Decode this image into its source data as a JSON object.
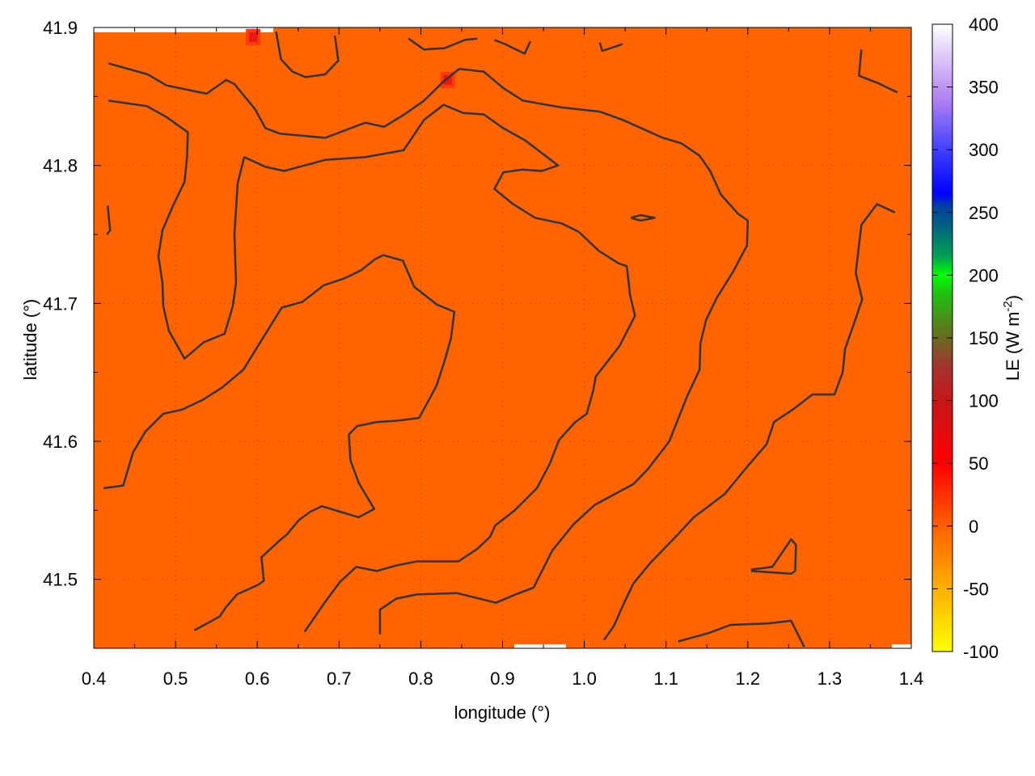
{
  "chart_data": {
    "type": "heatmap",
    "xlabel": "longitude (°)",
    "ylabel": "latitude (°)",
    "colorbar_label": "LE (W m",
    "colorbar_label_sup": "-2",
    "colorbar_label_close": ")",
    "xlim": [
      0.4,
      1.4
    ],
    "ylim": [
      41.45,
      41.9
    ],
    "clim": [
      -100,
      400
    ],
    "x_ticks": [
      "0.4",
      "0.5",
      "0.6",
      "0.7",
      "0.8",
      "0.9",
      "1.0",
      "1.1",
      "1.2",
      "1.3",
      "1.4"
    ],
    "x_tick_values": [
      0.4,
      0.5,
      0.6,
      0.7,
      0.8,
      0.9,
      1.0,
      1.1,
      1.2,
      1.3,
      1.4
    ],
    "y_ticks": [
      "41.5",
      "41.6",
      "41.7",
      "41.8",
      "41.9"
    ],
    "y_tick_values": [
      41.5,
      41.6,
      41.7,
      41.8,
      41.9
    ],
    "colorbar_ticks": [
      "-100",
      "-50",
      "0",
      "50",
      "100",
      "150",
      "200",
      "250",
      "300",
      "350",
      "400"
    ],
    "colorbar_tick_values": [
      -100,
      -50,
      0,
      50,
      100,
      150,
      200,
      250,
      300,
      350,
      400
    ],
    "grid": true,
    "field_base_value": 10,
    "field_color": "#ff6400",
    "hotspots": [
      {
        "lon": 0.595,
        "lat": 41.893,
        "value": 50
      },
      {
        "lon": 0.833,
        "lat": 41.862,
        "value": 50
      }
    ],
    "palette": [
      {
        "v": -100,
        "c": "#ffff00"
      },
      {
        "v": -50,
        "c": "#ffb000"
      },
      {
        "v": 0,
        "c": "#ff6000"
      },
      {
        "v": 50,
        "c": "#ff0000"
      },
      {
        "v": 100,
        "c": "#c41818"
      },
      {
        "v": 125,
        "c": "#a83030"
      },
      {
        "v": 150,
        "c": "#6a6a20"
      },
      {
        "v": 185,
        "c": "#20c010"
      },
      {
        "v": 200,
        "c": "#00ff00"
      },
      {
        "v": 215,
        "c": "#00a050"
      },
      {
        "v": 240,
        "c": "#006080"
      },
      {
        "v": 255,
        "c": "#0040a0"
      },
      {
        "v": 265,
        "c": "#0000ff"
      },
      {
        "v": 300,
        "c": "#4040ff"
      },
      {
        "v": 340,
        "c": "#b080f0"
      },
      {
        "v": 400,
        "c": "#ffffff"
      }
    ],
    "contour_color": "#333333",
    "contours": [
      [
        [
          0.418,
          41.874
        ],
        [
          0.466,
          41.866
        ],
        [
          0.489,
          41.858
        ],
        [
          0.538,
          41.852
        ],
        [
          0.562,
          41.862
        ],
        [
          0.572,
          41.859
        ],
        [
          0.597,
          41.841
        ],
        [
          0.61,
          41.827
        ],
        [
          0.628,
          41.823
        ],
        [
          0.683,
          41.82
        ],
        [
          0.732,
          41.831
        ],
        [
          0.755,
          41.828
        ],
        [
          0.78,
          41.837
        ],
        [
          0.804,
          41.847
        ],
        [
          0.828,
          41.861
        ],
        [
          0.847,
          41.87
        ],
        [
          0.877,
          41.868
        ],
        [
          0.901,
          41.856
        ],
        [
          0.925,
          41.847
        ],
        [
          0.973,
          41.842
        ],
        [
          1.019,
          41.839
        ],
        [
          1.047,
          41.833
        ],
        [
          1.096,
          41.82
        ],
        [
          1.119,
          41.816
        ],
        [
          1.141,
          41.807
        ],
        [
          1.154,
          41.796
        ],
        [
          1.167,
          41.779
        ],
        [
          1.188,
          41.765
        ],
        [
          1.2,
          41.76
        ],
        [
          1.199,
          41.742
        ],
        [
          1.182,
          41.723
        ],
        [
          1.162,
          41.704
        ],
        [
          1.149,
          41.688
        ],
        [
          1.142,
          41.671
        ],
        [
          1.141,
          41.652
        ],
        [
          1.126,
          41.633
        ],
        [
          1.104,
          41.6
        ],
        [
          1.078,
          41.58
        ],
        [
          1.06,
          41.569
        ],
        [
          1.013,
          41.554
        ],
        [
          0.987,
          41.54
        ],
        [
          0.972,
          41.529
        ],
        [
          0.961,
          41.521
        ],
        [
          0.938,
          41.494
        ],
        [
          0.916,
          41.489
        ],
        [
          0.892,
          41.483
        ],
        [
          0.844,
          41.49
        ],
        [
          0.795,
          41.489
        ],
        [
          0.77,
          41.486
        ],
        [
          0.75,
          41.478
        ],
        [
          0.75,
          41.46
        ]
      ],
      [
        [
          0.418,
          41.847
        ],
        [
          0.465,
          41.843
        ],
        [
          0.489,
          41.835
        ],
        [
          0.515,
          41.824
        ],
        [
          0.514,
          41.806
        ],
        [
          0.511,
          41.788
        ],
        [
          0.497,
          41.771
        ],
        [
          0.484,
          41.753
        ],
        [
          0.479,
          41.734
        ],
        [
          0.484,
          41.715
        ],
        [
          0.485,
          41.698
        ],
        [
          0.492,
          41.68
        ],
        [
          0.511,
          41.66
        ],
        [
          0.535,
          41.672
        ],
        [
          0.56,
          41.678
        ],
        [
          0.57,
          41.698
        ],
        [
          0.574,
          41.715
        ],
        [
          0.572,
          41.75
        ],
        [
          0.576,
          41.787
        ],
        [
          0.584,
          41.806
        ],
        [
          0.61,
          41.799
        ],
        [
          0.633,
          41.796
        ],
        [
          0.683,
          41.804
        ],
        [
          0.732,
          41.806
        ],
        [
          0.779,
          41.811
        ],
        [
          0.804,
          41.833
        ],
        [
          0.828,
          41.844
        ],
        [
          0.852,
          41.838
        ],
        [
          0.877,
          41.837
        ],
        [
          0.901,
          41.827
        ],
        [
          0.928,
          41.818
        ],
        [
          0.968,
          41.8
        ],
        [
          0.948,
          41.796
        ],
        [
          0.924,
          41.797
        ],
        [
          0.901,
          41.795
        ],
        [
          0.89,
          41.783
        ],
        [
          0.913,
          41.772
        ],
        [
          0.94,
          41.762
        ],
        [
          0.972,
          41.758
        ],
        [
          0.993,
          41.752
        ],
        [
          1.018,
          41.738
        ],
        [
          1.042,
          41.729
        ],
        [
          1.052,
          41.727
        ],
        [
          1.056,
          41.706
        ],
        [
          1.062,
          41.691
        ],
        [
          1.043,
          41.669
        ],
        [
          1.014,
          41.647
        ],
        [
          1.011,
          41.637
        ],
        [
          1.003,
          41.62
        ],
        [
          0.989,
          41.614
        ],
        [
          0.969,
          41.601
        ],
        [
          0.958,
          41.584
        ],
        [
          0.942,
          41.566
        ],
        [
          0.915,
          41.55
        ],
        [
          0.891,
          41.539
        ],
        [
          0.885,
          41.531
        ],
        [
          0.869,
          41.522
        ],
        [
          0.846,
          41.513
        ],
        [
          0.795,
          41.513
        ],
        [
          0.77,
          41.51
        ],
        [
          0.746,
          41.506
        ],
        [
          0.721,
          41.509
        ],
        [
          0.701,
          41.498
        ],
        [
          0.681,
          41.482
        ],
        [
          0.658,
          41.462
        ]
      ],
      [
        [
          0.412,
          41.566
        ],
        [
          0.436,
          41.568
        ],
        [
          0.448,
          41.592
        ],
        [
          0.463,
          41.607
        ],
        [
          0.485,
          41.62
        ],
        [
          0.508,
          41.623
        ],
        [
          0.533,
          41.63
        ],
        [
          0.557,
          41.639
        ],
        [
          0.583,
          41.652
        ],
        [
          0.608,
          41.676
        ],
        [
          0.63,
          41.697
        ],
        [
          0.655,
          41.701
        ],
        [
          0.681,
          41.713
        ],
        [
          0.706,
          41.718
        ],
        [
          0.727,
          41.724
        ],
        [
          0.744,
          41.732
        ],
        [
          0.754,
          41.735
        ],
        [
          0.778,
          41.731
        ],
        [
          0.792,
          41.712
        ],
        [
          0.82,
          41.699
        ],
        [
          0.841,
          41.694
        ],
        [
          0.837,
          41.675
        ],
        [
          0.829,
          41.658
        ],
        [
          0.819,
          41.64
        ],
        [
          0.798,
          41.617
        ],
        [
          0.772,
          41.615
        ],
        [
          0.746,
          41.614
        ],
        [
          0.722,
          41.611
        ],
        [
          0.712,
          41.605
        ],
        [
          0.714,
          41.586
        ],
        [
          0.724,
          41.57
        ],
        [
          0.743,
          41.551
        ],
        [
          0.724,
          41.545
        ],
        [
          0.701,
          41.549
        ],
        [
          0.679,
          41.553
        ],
        [
          0.665,
          41.549
        ],
        [
          0.651,
          41.543
        ],
        [
          0.637,
          41.533
        ],
        [
          0.627,
          41.528
        ],
        [
          0.605,
          41.516
        ],
        [
          0.608,
          41.499
        ],
        [
          0.601,
          41.496
        ],
        [
          0.575,
          41.489
        ],
        [
          0.562,
          41.48
        ],
        [
          0.554,
          41.473
        ],
        [
          0.523,
          41.463
        ]
      ],
      [
        [
          1.339,
          41.884
        ],
        [
          1.336,
          41.865
        ],
        [
          1.358,
          41.86
        ],
        [
          1.383,
          41.853
        ]
      ],
      [
        [
          1.38,
          41.766
        ],
        [
          1.358,
          41.772
        ],
        [
          1.339,
          41.757
        ],
        [
          1.332,
          41.722
        ],
        [
          1.34,
          41.703
        ],
        [
          1.332,
          41.689
        ],
        [
          1.319,
          41.667
        ],
        [
          1.316,
          41.65
        ],
        [
          1.306,
          41.634
        ],
        [
          1.279,
          41.634
        ],
        [
          1.255,
          41.623
        ],
        [
          1.232,
          41.614
        ],
        [
          1.223,
          41.598
        ],
        [
          1.197,
          41.58
        ],
        [
          1.172,
          41.562
        ],
        [
          1.152,
          41.553
        ],
        [
          1.134,
          41.545
        ],
        [
          1.112,
          41.531
        ],
        [
          1.081,
          41.512
        ],
        [
          1.06,
          41.497
        ],
        [
          1.048,
          41.482
        ],
        [
          1.036,
          41.466
        ],
        [
          1.024,
          41.456
        ]
      ],
      [
        [
          1.115,
          41.455
        ],
        [
          1.152,
          41.461
        ],
        [
          1.179,
          41.467
        ],
        [
          1.225,
          41.468
        ],
        [
          1.253,
          41.47
        ],
        [
          1.269,
          41.451
        ]
      ],
      [
        [
          1.204,
          41.507
        ],
        [
          1.23,
          41.509
        ],
        [
          1.253,
          41.529
        ],
        [
          1.259,
          41.525
        ],
        [
          1.258,
          41.506
        ],
        [
          1.253,
          41.504
        ],
        [
          1.204,
          41.506
        ]
      ],
      [
        [
          0.623,
          41.897
        ],
        [
          0.629,
          41.877
        ],
        [
          0.643,
          41.868
        ],
        [
          0.659,
          41.864
        ],
        [
          0.683,
          41.866
        ],
        [
          0.699,
          41.876
        ],
        [
          0.695,
          41.894
        ]
      ],
      [
        [
          0.785,
          41.892
        ],
        [
          0.804,
          41.884
        ],
        [
          0.829,
          41.885
        ],
        [
          0.854,
          41.891
        ],
        [
          0.869,
          41.892
        ]
      ],
      [
        [
          0.89,
          41.891
        ],
        [
          0.903,
          41.888
        ],
        [
          0.927,
          41.881
        ],
        [
          0.934,
          41.89
        ]
      ],
      [
        [
          1.019,
          41.889
        ],
        [
          1.022,
          41.883
        ],
        [
          1.047,
          41.888
        ]
      ],
      [
        [
          1.057,
          41.762
        ],
        [
          1.069,
          41.764
        ],
        [
          1.086,
          41.762
        ],
        [
          1.069,
          41.76
        ],
        [
          1.057,
          41.762
        ]
      ],
      [
        [
          0.417,
          41.771
        ],
        [
          0.42,
          41.753
        ],
        [
          0.416,
          41.75
        ]
      ]
    ]
  }
}
